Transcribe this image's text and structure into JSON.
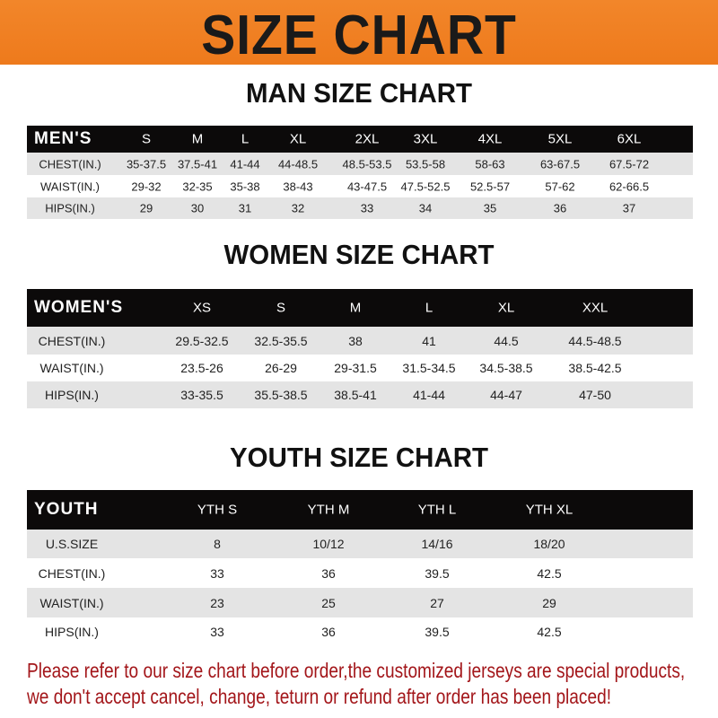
{
  "title": "SIZE CHART",
  "colors": {
    "banner": "#f08022",
    "header_bar": "#0c0a0a",
    "notice_text": "#a3161a"
  },
  "tables": [
    {
      "title": "MAN SIZE CHART",
      "header": [
        "MEN'S",
        "S",
        "M",
        "L",
        "XL",
        "2XL",
        "3XL",
        "4XL",
        "5XL",
        "6XL"
      ],
      "rows": [
        [
          "CHEST(IN.)",
          "35-37.5",
          "37.5-41",
          "41-44",
          "44-48.5",
          "48.5-53.5",
          "53.5-58",
          "58-63",
          "63-67.5",
          "67.5-72"
        ],
        [
          "WAIST(IN.)",
          "29-32",
          "32-35",
          "35-38",
          "38-43",
          "43-47.5",
          "47.5-52.5",
          "52.5-57",
          "57-62",
          "62-66.5"
        ],
        [
          "HIPS(IN.)",
          "29",
          "30",
          "31",
          "32",
          "33",
          "34",
          "35",
          "36",
          "37"
        ]
      ]
    },
    {
      "title": "WOMEN SIZE CHART",
      "header": [
        "WOMEN'S",
        "XS",
        "S",
        "M",
        "L",
        "XL",
        "XXL"
      ],
      "rows": [
        [
          "CHEST(IN.)",
          "29.5-32.5",
          "32.5-35.5",
          "38",
          "41",
          "44.5",
          "44.5-48.5"
        ],
        [
          "WAIST(IN.)",
          "23.5-26",
          "26-29",
          "29-31.5",
          "31.5-34.5",
          "34.5-38.5",
          "38.5-42.5"
        ],
        [
          "HIPS(IN.)",
          "33-35.5",
          "35.5-38.5",
          "38.5-41",
          "41-44",
          "44-47",
          "47-50"
        ]
      ]
    },
    {
      "title": "YOUTH SIZE CHART",
      "header": [
        "YOUTH",
        "YTH S",
        "YTH M",
        "YTH L",
        "YTH XL"
      ],
      "rows": [
        [
          "U.S.SIZE",
          "8",
          "10/12",
          "14/16",
          "18/20"
        ],
        [
          "CHEST(IN.)",
          "33",
          "36",
          "39.5",
          "42.5"
        ],
        [
          "WAIST(IN.)",
          "23",
          "25",
          "27",
          "29"
        ],
        [
          "HIPS(IN.)",
          "33",
          "36",
          "39.5",
          "42.5"
        ]
      ]
    }
  ],
  "notice": [
    "Please refer to our size chart before order,the customized jerseys are special products,",
    "we don't accept cancel, change, teturn or refund after order has been placed!"
  ]
}
